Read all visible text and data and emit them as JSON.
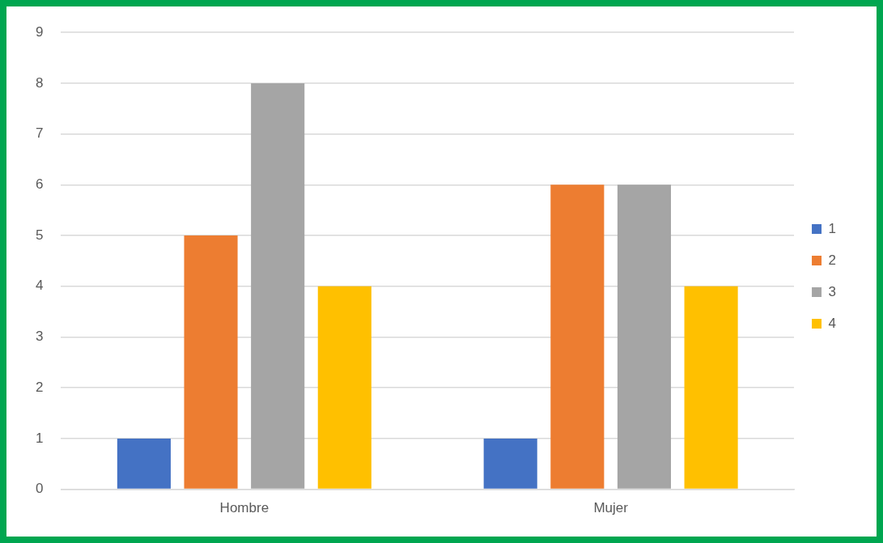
{
  "chart_data": {
    "type": "bar",
    "categories": [
      "Hombre",
      "Mujer"
    ],
    "series": [
      {
        "name": "1",
        "color": "#4472c4",
        "values": [
          1,
          1
        ]
      },
      {
        "name": "2",
        "color": "#ed7d31",
        "values": [
          5,
          6
        ]
      },
      {
        "name": "3",
        "color": "#a5a5a5",
        "values": [
          8,
          6
        ]
      },
      {
        "name": "4",
        "color": "#ffc000",
        "values": [
          4,
          4
        ]
      }
    ],
    "ylim": [
      0,
      9
    ],
    "yticks": [
      0,
      1,
      2,
      3,
      4,
      5,
      6,
      7,
      8,
      9
    ],
    "grid": "y",
    "legend": "right"
  }
}
